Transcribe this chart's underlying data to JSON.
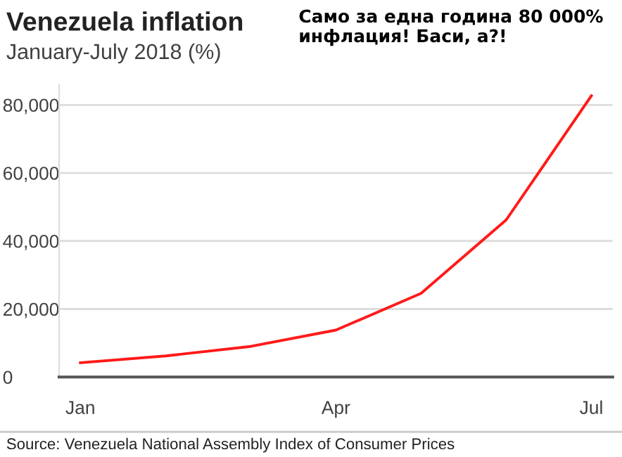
{
  "chart_data": {
    "type": "line",
    "title": "Venezuela inflation",
    "subtitle": "January-July 2018 (%)",
    "categories": [
      "Jan",
      null,
      null,
      "Apr",
      null,
      null,
      "Jul"
    ],
    "series": [
      {
        "color": "#ff1a1a",
        "values": [
          4200,
          6200,
          9000,
          13800,
          24600,
          46200,
          82700
        ]
      }
    ],
    "ylim": [
      0,
      86000
    ],
    "yticks": [
      {
        "value": 0,
        "label": "0"
      },
      {
        "value": 20000,
        "label": "20,000"
      },
      {
        "value": 40000,
        "label": "40,000"
      },
      {
        "value": 60000,
        "label": "60,000"
      },
      {
        "value": 80000,
        "label": "80,000"
      }
    ],
    "grid": "y",
    "marker": "none",
    "line_style": "solid",
    "annotations": [
      "Само за една година 80 000% инфлация! Баси, а?!",
      "Source: Venezuela National Assembly Index of Consumer Prices"
    ]
  }
}
